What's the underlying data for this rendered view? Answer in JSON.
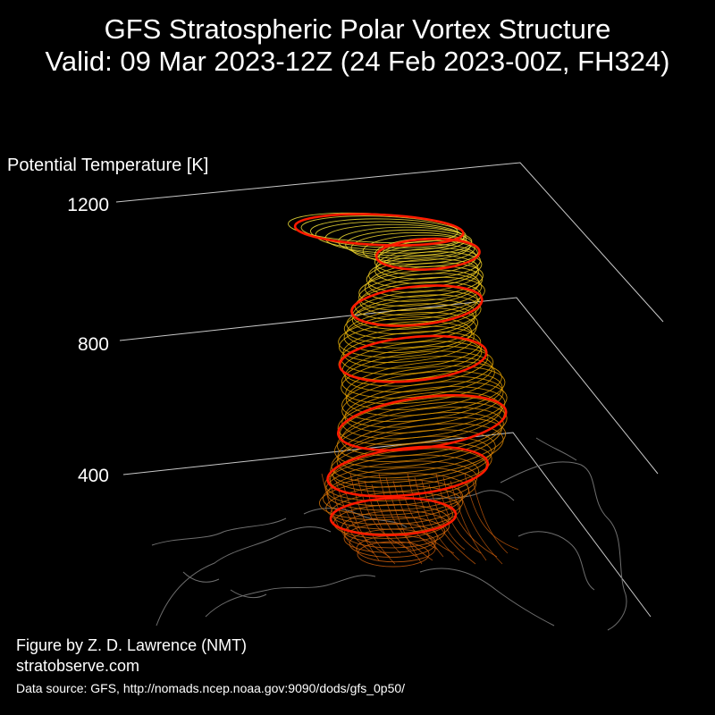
{
  "title_line1": "GFS Stratospheric Polar Vortex Structure",
  "title_line2": "Valid: 09 Mar 2023-12Z  (24 Feb 2023-00Z, FH324)",
  "chart_data": {
    "type": "3d-isosurface",
    "zlabel": "Potential Temperature [K]",
    "z_ticks": [
      400,
      800,
      1200
    ],
    "colors": {
      "grid": "#c8c8c8",
      "coast": "#6e6e6e",
      "vortex_low": "#c85a0a",
      "vortex_mid": "#e6a800",
      "vortex_high": "#f2e23a",
      "edge": "#ff1a00"
    }
  },
  "credits": {
    "author": "Figure by Z. D. Lawrence (NMT)",
    "site": "stratobserve.com",
    "source": "Data source: GFS, http://nomads.ncep.noaa.gov:9090/dods/gfs_0p50/"
  }
}
